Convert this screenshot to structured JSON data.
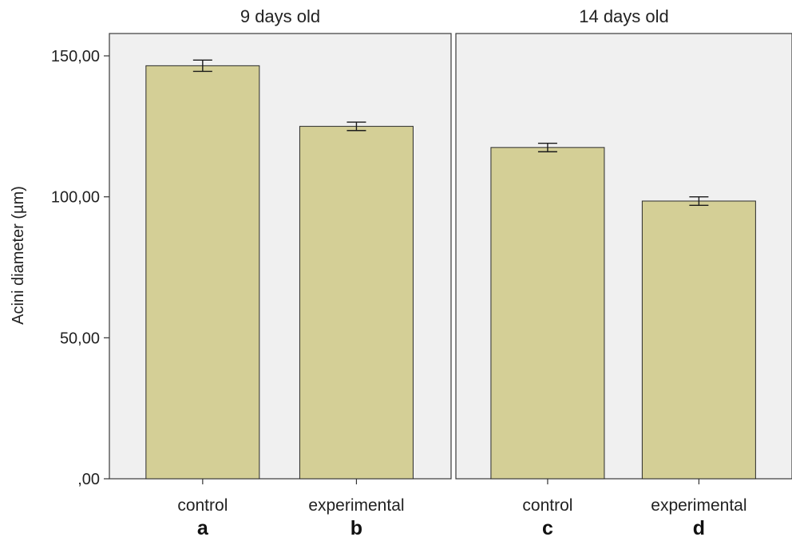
{
  "chart_data": {
    "type": "bar",
    "ylabel": "Acini diameter (µm)",
    "ylim": [
      0,
      160
    ],
    "y_ticks": [
      {
        "value": 0,
        "label": ",00"
      },
      {
        "value": 50,
        "label": "50,00"
      },
      {
        "value": 100,
        "label": "100,00"
      },
      {
        "value": 150,
        "label": "150,00"
      }
    ],
    "grid": false,
    "panels": [
      {
        "title": "9 days old",
        "categories": [
          "control",
          "experimental"
        ],
        "letters": [
          "a",
          "b"
        ],
        "values": [
          146.5,
          125.0
        ],
        "error_low": [
          144.5,
          123.5
        ],
        "error_high": [
          148.5,
          126.5
        ]
      },
      {
        "title": "14 days old",
        "categories": [
          "control",
          "experimental"
        ],
        "letters": [
          "c",
          "d"
        ],
        "values": [
          117.5,
          98.5
        ],
        "error_low": [
          116.0,
          97.0
        ],
        "error_high": [
          119.0,
          100.0
        ]
      }
    ],
    "colors": {
      "bar_fill": "#d4cf96",
      "panel_background": "#f0f0f0"
    }
  }
}
